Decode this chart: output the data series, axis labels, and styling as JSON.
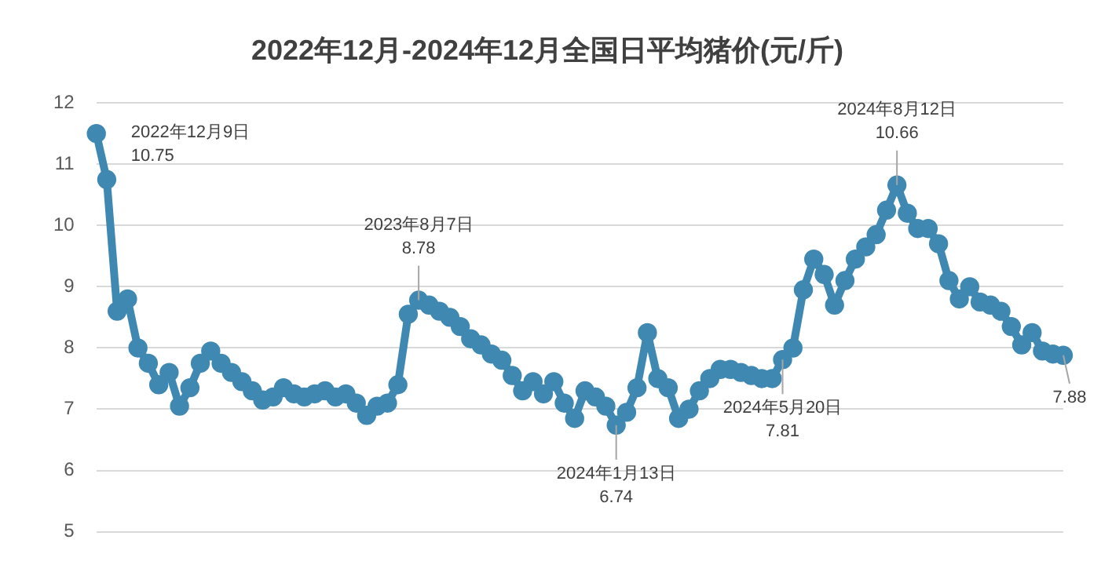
{
  "chart_data": {
    "type": "line",
    "title": "2022年12月-2024年12月全国日平均猪价(元/斤)",
    "marker": "circle",
    "grid": "y",
    "legend": false,
    "tick_labels": "y",
    "ylim": [
      5,
      12
    ],
    "yticks": [
      5,
      6,
      7,
      8,
      9,
      10,
      11,
      12
    ],
    "categories": [
      null,
      null,
      null,
      null,
      null,
      null,
      null,
      null,
      null,
      null,
      null,
      null,
      null,
      null,
      null,
      null,
      null,
      null,
      null,
      null,
      null,
      null,
      null,
      null,
      null,
      null,
      null,
      null,
      null,
      null,
      null,
      null,
      null,
      null,
      null,
      null,
      null,
      null,
      null,
      null,
      null,
      null,
      null,
      null,
      null,
      null,
      null,
      null,
      null,
      null,
      null,
      null,
      null,
      null,
      null,
      null,
      null,
      null,
      null,
      null,
      null,
      null,
      null,
      null,
      null,
      null,
      null,
      null,
      null,
      null,
      null,
      null,
      null,
      null,
      null,
      null,
      null,
      null,
      null,
      null,
      null,
      null,
      null,
      null,
      null,
      null,
      null,
      null,
      null,
      null,
      null,
      null,
      null,
      null
    ],
    "series": [
      {
        "color": "#3f88b2",
        "values": [
          11.5,
          10.75,
          8.6,
          8.8,
          8.0,
          7.75,
          7.4,
          7.6,
          7.05,
          7.35,
          7.75,
          7.95,
          7.75,
          7.6,
          7.45,
          7.3,
          7.15,
          7.2,
          7.35,
          7.25,
          7.2,
          7.25,
          7.3,
          7.2,
          7.25,
          7.1,
          6.9,
          7.05,
          7.1,
          7.4,
          8.55,
          8.78,
          8.7,
          8.6,
          8.5,
          8.35,
          8.15,
          8.05,
          7.9,
          7.8,
          7.55,
          7.3,
          7.45,
          7.25,
          7.45,
          7.1,
          6.85,
          7.3,
          7.2,
          7.05,
          6.74,
          6.95,
          7.35,
          8.25,
          7.5,
          7.35,
          6.85,
          7.0,
          7.3,
          7.5,
          7.65,
          7.65,
          7.6,
          7.55,
          7.5,
          7.5,
          7.81,
          8.0,
          8.95,
          9.45,
          9.2,
          8.7,
          9.1,
          9.45,
          9.65,
          9.85,
          10.25,
          10.66,
          10.2,
          9.95,
          9.95,
          9.7,
          9.1,
          8.8,
          9.0,
          8.75,
          8.7,
          8.6,
          8.35,
          8.05,
          8.25,
          7.95,
          7.9,
          7.88
        ]
      }
    ],
    "annotations": [
      "2022年12月9日\n10.75",
      {
        "text": "2023年8月7日\n8.78",
        "y": 8.78
      },
      {
        "text": "2024年1月13日\n6.74",
        "y": 6.74
      },
      {
        "text": "2024年5月20日\n7.81",
        "y": 7.81
      },
      {
        "text": "2024年8月12日\n10.66",
        "y": 10.66
      },
      {
        "text": "7.88",
        "y": 7.88
      }
    ]
  }
}
